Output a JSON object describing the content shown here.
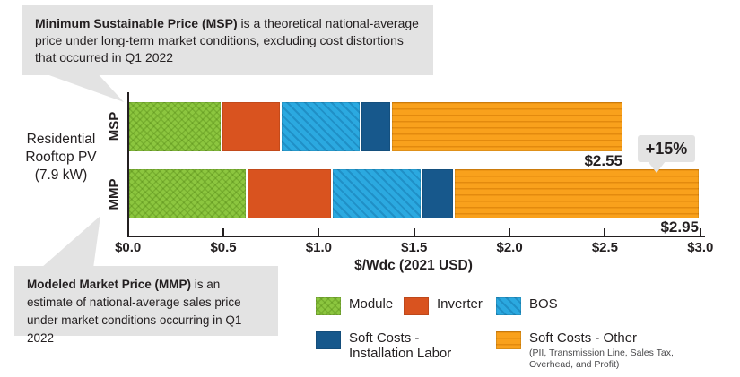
{
  "callouts": {
    "msp": {
      "bold": "Minimum Sustainable Price (MSP)",
      "rest": " is a theoretical national-average price under long-term market conditions, excluding cost distortions that occurred in Q1 2022"
    },
    "mmp": {
      "bold": "Modeled Market Price (MMP)",
      "rest": " is an estimate of national-average sales price under market conditions occurring in Q1 2022"
    }
  },
  "group_label": "Residential\nRooftop PV\n(7.9 kW)",
  "chart_data": {
    "type": "bar",
    "orientation": "horizontal",
    "stacked": true,
    "categories": [
      "MSP",
      "MMP"
    ],
    "series": [
      {
        "name": "Module",
        "values": [
          0.48,
          0.61
        ],
        "color": "#8CC63F",
        "pattern": "crosshatch"
      },
      {
        "name": "Inverter",
        "values": [
          0.3,
          0.44
        ],
        "color": "#D9531F",
        "pattern": "solid"
      },
      {
        "name": "BOS",
        "values": [
          0.41,
          0.46
        ],
        "color": "#2BA9E0",
        "pattern": "diagonal"
      },
      {
        "name": "Soft Costs - Installation Labor",
        "values": [
          0.15,
          0.16
        ],
        "color": "#17588C",
        "pattern": "solid"
      },
      {
        "name": "Soft Costs - Other",
        "values": [
          1.21,
          1.28
        ],
        "color": "#F9A11C",
        "pattern": "hlines",
        "sublabel": "(PII, Transmission Line, Sales Tax, Overhead, and Profit)"
      }
    ],
    "totals": [
      "$2.55",
      "$2.95"
    ],
    "annotation": "+15%",
    "xlabel": "$/Wdc (2021 USD)",
    "xlim": [
      0,
      3
    ],
    "xticks": [
      "$0.0",
      "$0.5",
      "$1.0",
      "$1.5",
      "$2.0",
      "$2.5",
      "$3.0"
    ],
    "grid": false,
    "legend_position": "bottom-right",
    "text_color": "#231F20",
    "callout_bg": "#E3E3E3"
  }
}
